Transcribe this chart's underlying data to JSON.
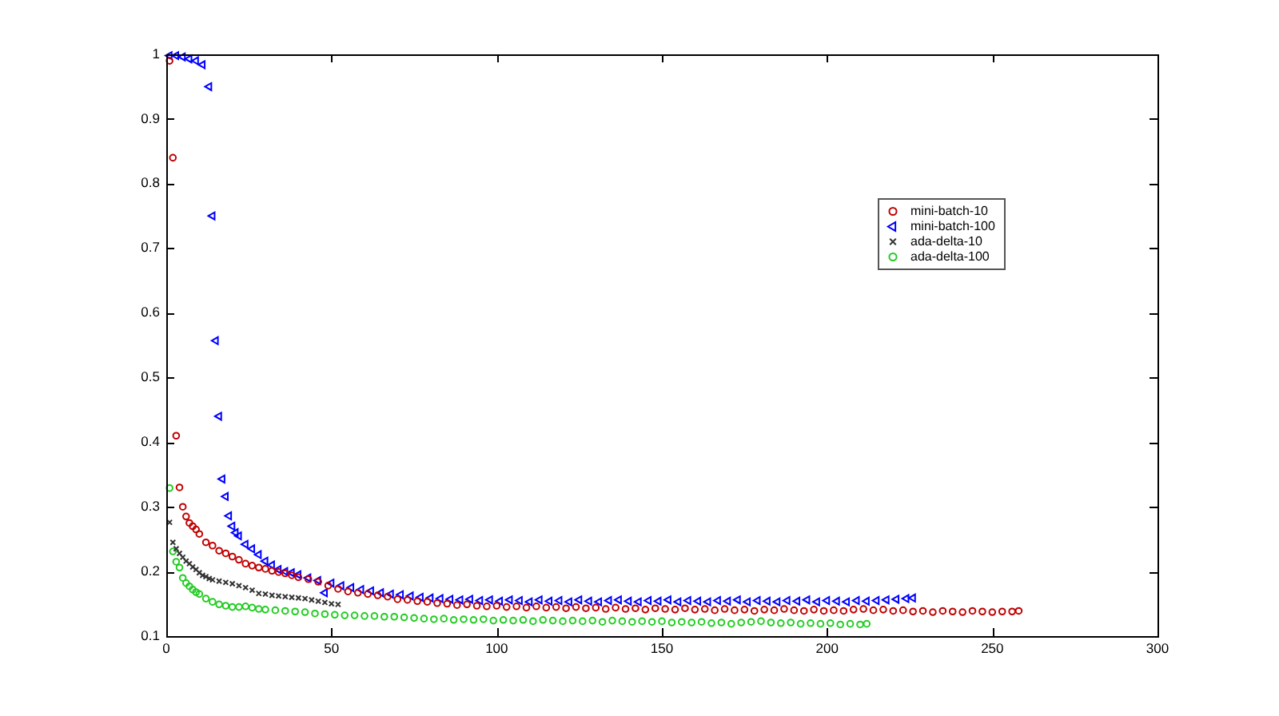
{
  "chart_data": {
    "type": "scatter",
    "xlim": [
      0,
      300
    ],
    "xticks": [
      0,
      50,
      100,
      150,
      200,
      250,
      300
    ],
    "ylim": [
      0.1,
      1
    ],
    "yticks": [
      0.1,
      0.2,
      0.3,
      0.4,
      0.5,
      0.6,
      0.7,
      0.8,
      0.9,
      1
    ],
    "legend": "top right",
    "series": [
      {
        "name": "mini-batch-10",
        "color": "#c00000",
        "marker": "circle",
        "x": [
          1,
          2,
          3,
          4,
          5,
          6,
          7,
          8,
          9,
          10,
          12,
          14,
          16,
          18,
          20,
          22,
          24,
          26,
          28,
          30,
          32,
          34,
          36,
          38,
          40,
          43,
          46,
          49,
          52,
          55,
          58,
          61,
          64,
          67,
          70,
          73,
          76,
          79,
          82,
          85,
          88,
          91,
          94,
          97,
          100,
          103,
          106,
          109,
          112,
          115,
          118,
          121,
          124,
          127,
          130,
          133,
          136,
          139,
          142,
          145,
          148,
          151,
          154,
          157,
          160,
          163,
          166,
          169,
          172,
          175,
          178,
          181,
          184,
          187,
          190,
          193,
          196,
          199,
          202,
          205,
          208,
          211,
          214,
          217,
          220,
          223,
          226,
          229,
          232,
          235,
          238,
          241,
          244,
          247,
          250,
          253,
          256,
          258
        ],
        "values": [
          0.99,
          0.84,
          0.41,
          0.33,
          0.3,
          0.285,
          0.275,
          0.27,
          0.265,
          0.258,
          0.245,
          0.24,
          0.232,
          0.228,
          0.223,
          0.218,
          0.212,
          0.209,
          0.206,
          0.204,
          0.201,
          0.199,
          0.197,
          0.194,
          0.191,
          0.188,
          0.184,
          0.178,
          0.173,
          0.169,
          0.167,
          0.165,
          0.163,
          0.161,
          0.157,
          0.156,
          0.154,
          0.153,
          0.151,
          0.15,
          0.148,
          0.149,
          0.147,
          0.146,
          0.147,
          0.145,
          0.146,
          0.144,
          0.146,
          0.144,
          0.145,
          0.143,
          0.145,
          0.143,
          0.144,
          0.142,
          0.144,
          0.142,
          0.143,
          0.141,
          0.143,
          0.142,
          0.141,
          0.143,
          0.141,
          0.142,
          0.14,
          0.142,
          0.14,
          0.141,
          0.139,
          0.141,
          0.14,
          0.142,
          0.14,
          0.139,
          0.141,
          0.139,
          0.14,
          0.139,
          0.141,
          0.142,
          0.14,
          0.141,
          0.139,
          0.14,
          0.138,
          0.139,
          0.137,
          0.139,
          0.138,
          0.137,
          0.139,
          0.138,
          0.137,
          0.138,
          0.138,
          0.139
        ]
      },
      {
        "name": "mini-batch-100",
        "color": "#0000ff",
        "marker": "triangle",
        "x": [
          1,
          3,
          5,
          7,
          9,
          11,
          13,
          14,
          15,
          16,
          17,
          18,
          19,
          20,
          21,
          22,
          24,
          26,
          28,
          30,
          32,
          34,
          36,
          38,
          40,
          43,
          46,
          48,
          50,
          53,
          56,
          59,
          62,
          65,
          68,
          71,
          74,
          77,
          80,
          83,
          86,
          89,
          92,
          95,
          98,
          101,
          104,
          107,
          110,
          113,
          116,
          119,
          122,
          125,
          128,
          131,
          134,
          137,
          140,
          143,
          146,
          149,
          152,
          155,
          158,
          161,
          164,
          167,
          170,
          173,
          176,
          179,
          182,
          185,
          188,
          191,
          194,
          197,
          200,
          203,
          206,
          209,
          212,
          215,
          218,
          221,
          224,
          226
        ],
        "values": [
          0.998,
          0.998,
          0.996,
          0.993,
          0.99,
          0.984,
          0.95,
          0.75,
          0.557,
          0.44,
          0.343,
          0.316,
          0.286,
          0.27,
          0.26,
          0.255,
          0.242,
          0.235,
          0.226,
          0.216,
          0.21,
          0.203,
          0.2,
          0.198,
          0.195,
          0.19,
          0.186,
          0.167,
          0.182,
          0.178,
          0.175,
          0.172,
          0.17,
          0.167,
          0.165,
          0.164,
          0.162,
          0.16,
          0.159,
          0.158,
          0.157,
          0.156,
          0.157,
          0.155,
          0.156,
          0.154,
          0.156,
          0.155,
          0.153,
          0.156,
          0.154,
          0.155,
          0.153,
          0.156,
          0.154,
          0.153,
          0.155,
          0.156,
          0.154,
          0.153,
          0.155,
          0.154,
          0.156,
          0.153,
          0.155,
          0.154,
          0.153,
          0.155,
          0.154,
          0.156,
          0.153,
          0.155,
          0.154,
          0.153,
          0.155,
          0.154,
          0.156,
          0.153,
          0.155,
          0.154,
          0.153,
          0.155,
          0.154,
          0.155,
          0.156,
          0.157,
          0.158,
          0.159
        ]
      },
      {
        "name": "ada-delta-10",
        "color": "#333333",
        "marker": "cross",
        "x": [
          1,
          2,
          3,
          4,
          5,
          6,
          7,
          8,
          9,
          10,
          11,
          12,
          13,
          14,
          16,
          18,
          20,
          22,
          24,
          26,
          28,
          30,
          32,
          34,
          36,
          38,
          40,
          42,
          44,
          46,
          48,
          50,
          52
        ],
        "values": [
          0.276,
          0.245,
          0.235,
          0.228,
          0.222,
          0.216,
          0.212,
          0.207,
          0.203,
          0.198,
          0.194,
          0.192,
          0.189,
          0.187,
          0.185,
          0.183,
          0.181,
          0.178,
          0.175,
          0.171,
          0.166,
          0.165,
          0.163,
          0.162,
          0.161,
          0.16,
          0.159,
          0.158,
          0.156,
          0.154,
          0.152,
          0.15,
          0.149
        ]
      },
      {
        "name": "ada-delta-100",
        "color": "#22cc22",
        "marker": "circle",
        "x": [
          1,
          2,
          3,
          4,
          5,
          6,
          7,
          8,
          9,
          10,
          12,
          14,
          16,
          18,
          20,
          22,
          24,
          26,
          28,
          30,
          33,
          36,
          39,
          42,
          45,
          48,
          51,
          54,
          57,
          60,
          63,
          66,
          69,
          72,
          75,
          78,
          81,
          84,
          87,
          90,
          93,
          96,
          99,
          102,
          105,
          108,
          111,
          114,
          117,
          120,
          123,
          126,
          129,
          132,
          135,
          138,
          141,
          144,
          147,
          150,
          153,
          156,
          159,
          162,
          165,
          168,
          171,
          174,
          177,
          180,
          183,
          186,
          189,
          192,
          195,
          198,
          201,
          204,
          207,
          210,
          212
        ],
        "values": [
          0.329,
          0.231,
          0.215,
          0.206,
          0.19,
          0.182,
          0.177,
          0.172,
          0.168,
          0.165,
          0.158,
          0.153,
          0.149,
          0.147,
          0.145,
          0.145,
          0.146,
          0.144,
          0.142,
          0.141,
          0.14,
          0.139,
          0.138,
          0.137,
          0.135,
          0.134,
          0.133,
          0.132,
          0.132,
          0.131,
          0.131,
          0.13,
          0.13,
          0.129,
          0.128,
          0.127,
          0.126,
          0.127,
          0.125,
          0.126,
          0.125,
          0.126,
          0.124,
          0.125,
          0.124,
          0.125,
          0.123,
          0.125,
          0.124,
          0.123,
          0.124,
          0.123,
          0.124,
          0.122,
          0.124,
          0.123,
          0.122,
          0.123,
          0.122,
          0.123,
          0.121,
          0.122,
          0.121,
          0.122,
          0.12,
          0.121,
          0.119,
          0.121,
          0.122,
          0.123,
          0.121,
          0.12,
          0.121,
          0.119,
          0.12,
          0.119,
          0.12,
          0.118,
          0.119,
          0.118,
          0.119
        ]
      }
    ]
  }
}
